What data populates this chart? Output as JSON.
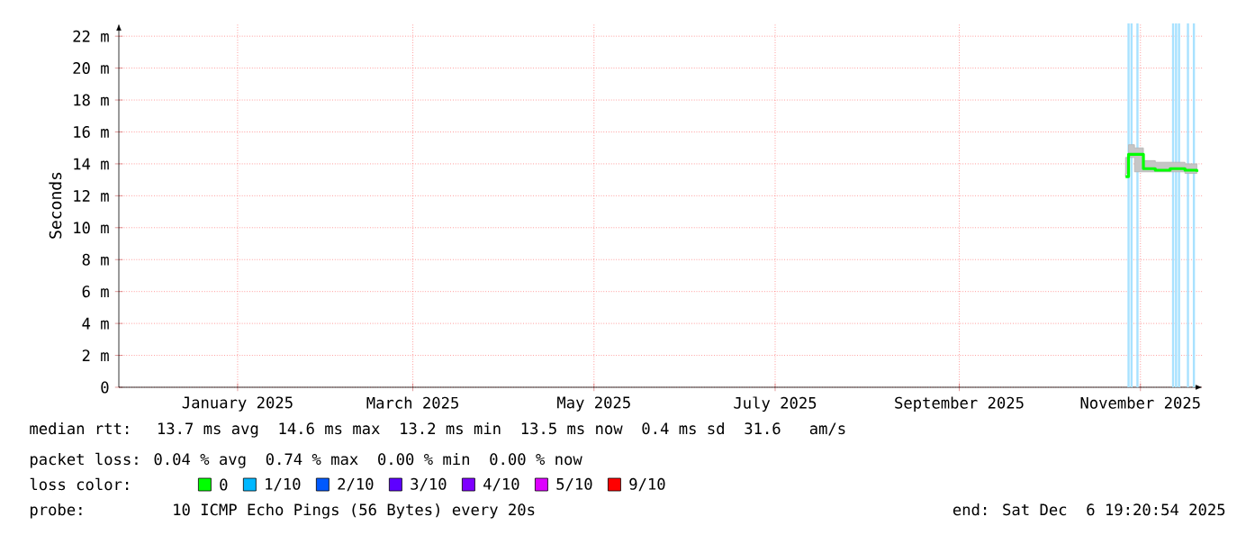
{
  "chart_data": {
    "type": "step",
    "ylabel": "Seconds",
    "xlim": [
      "2024-12-06",
      "2025-12-06"
    ],
    "xticks": [
      {
        "value": "2025-01-15",
        "label": "January 2025"
      },
      {
        "value": "2025-03-15",
        "label": "March 2025"
      },
      {
        "value": "2025-05-15",
        "label": "May 2025"
      },
      {
        "value": "2025-07-15",
        "label": "July 2025"
      },
      {
        "value": "2025-09-15",
        "label": "September 2025"
      },
      {
        "value": "2025-11-15",
        "label": "November 2025"
      }
    ],
    "ylim": [
      0,
      22.8
    ],
    "yticks": [
      {
        "value": 0,
        "label": "0"
      },
      {
        "value": 2,
        "label": "2 m"
      },
      {
        "value": 4,
        "label": "4 m"
      },
      {
        "value": 6,
        "label": "6 m"
      },
      {
        "value": 8,
        "label": "8 m"
      },
      {
        "value": 10,
        "label": "10 m"
      },
      {
        "value": 12,
        "label": "12 m"
      },
      {
        "value": 14,
        "label": "14 m"
      },
      {
        "value": 16,
        "label": "16 m"
      },
      {
        "value": 18,
        "label": "18 m"
      },
      {
        "value": 20,
        "label": "20 m"
      },
      {
        "value": 22,
        "label": "22 m"
      }
    ],
    "grid": true,
    "legend": "bottom",
    "legend_title": "loss color:",
    "series": [
      {
        "name": "0",
        "color": "#00ff00",
        "x": [
          "2025-11-10",
          "2025-11-11",
          "2025-11-13",
          "2025-11-16",
          "2025-11-20",
          "2025-11-25",
          "2025-11-30",
          "2025-12-04"
        ],
        "values": [
          13.2,
          14.6,
          14.6,
          13.7,
          13.6,
          13.7,
          13.6,
          13.5
        ],
        "lower": [
          13.2,
          14.4,
          14.4,
          13.5,
          13.5,
          13.5,
          13.5,
          13.4
        ],
        "upper": [
          13.4,
          15.2,
          15.0,
          14.2,
          14.1,
          14.1,
          14.0,
          14.0
        ]
      },
      {
        "name": "1/10",
        "color": "#00b8ff",
        "values": [
          null
        ]
      },
      {
        "name": "2/10",
        "color": "#0059ff",
        "values": [
          null
        ]
      },
      {
        "name": "3/10",
        "color": "#5e00ff",
        "values": [
          null
        ]
      },
      {
        "name": "4/10",
        "color": "#7e00ff",
        "values": [
          null
        ]
      },
      {
        "name": "5/10",
        "color": "#dd00ff",
        "values": [
          null
        ]
      },
      {
        "name": "9/10",
        "color": "#ff0000",
        "values": [
          null
        ]
      }
    ],
    "ref_lines": [
      {
        "axis": "x",
        "value": "2025-11-11",
        "color": "#a8e2ff"
      },
      {
        "axis": "x",
        "value": "2025-11-12",
        "color": "#a8e2ff"
      },
      {
        "axis": "x",
        "value": "2025-11-14",
        "color": "#a8e2ff"
      },
      {
        "axis": "x",
        "value": "2025-11-26",
        "color": "#a8e2ff"
      },
      {
        "axis": "x",
        "value": "2025-11-27",
        "color": "#a8e2ff"
      },
      {
        "axis": "x",
        "value": "2025-11-28",
        "color": "#a8e2ff"
      },
      {
        "axis": "x",
        "value": "2025-12-01",
        "color": "#a8e2ff"
      },
      {
        "axis": "x",
        "value": "2025-12-03",
        "color": "#a8e2ff"
      }
    ],
    "annotations": [
      "median rtt:  13.7 ms avg  14.6 ms max  13.2 ms min  13.5 ms now  0.4 ms sd  31.6   am/s",
      "packet loss: 0.04 % avg  0.74 % max  0.00 % min  0.00 % now",
      "probe:       10 ICMP Echo Pings (56 Bytes) every 20s",
      "end: Sat Dec  6 19:20:54 2025"
    ]
  }
}
